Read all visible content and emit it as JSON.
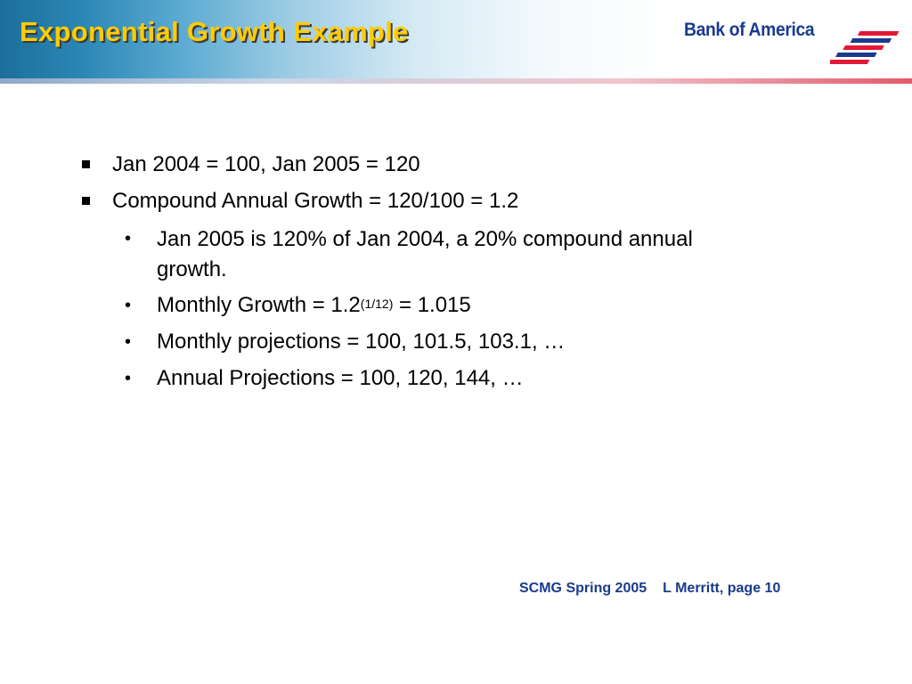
{
  "slide": {
    "title": "Exponential Growth Example"
  },
  "logo": {
    "wordmark": "Bank of America",
    "flag_colors": [
      "#e31837",
      "#1a3a8c"
    ]
  },
  "bullets": [
    {
      "level": 1,
      "text": "Jan 2004 = 100, Jan 2005 = 120"
    },
    {
      "level": 1,
      "text": "Compound Annual Growth = 120/100 = 1.2"
    },
    {
      "level": 2,
      "line1": "Jan 2005 is 120% of Jan 2004, a 20% compound annual",
      "line2": "growth."
    },
    {
      "level": 2,
      "prefix": "Monthly Growth = 1.2",
      "superscript": "(1/12)",
      "suffix": " = 1.015"
    },
    {
      "level": 2,
      "text": "Monthly projections = 100, 101.5, 103.1, …"
    },
    {
      "level": 2,
      "text": "Annual Projections = 100, 120, 144, …"
    }
  ],
  "footer": {
    "event": "SCMG Spring 2005",
    "author_page": "L Merritt, page 10"
  },
  "colors": {
    "title": "#ffcc00",
    "header_blue": "#1c6f9a",
    "footer_text": "#1a3a8c"
  }
}
